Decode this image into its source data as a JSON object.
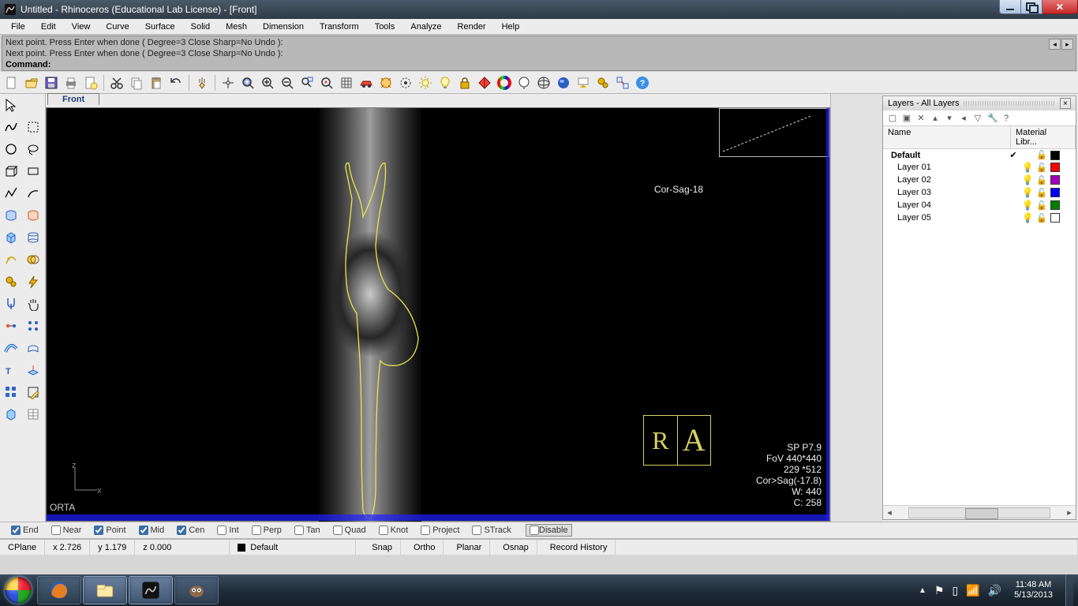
{
  "window": {
    "title": "Untitled - Rhinoceros (Educational Lab License) - [Front]"
  },
  "menu": [
    "File",
    "Edit",
    "View",
    "Curve",
    "Surface",
    "Solid",
    "Mesh",
    "Dimension",
    "Transform",
    "Tools",
    "Analyze",
    "Render",
    "Help"
  ],
  "command": {
    "history": [
      "Next point. Press Enter when done ( Degree=3  Close  Sharp=No  Undo ):",
      "Next point. Press Enter when done ( Degree=3  Close  Sharp=No  Undo ):"
    ],
    "prompt": "Command:",
    "value": ""
  },
  "viewport": {
    "title": "Front",
    "overlay": {
      "overlay_label": "Cor-Sag-18",
      "orta": "ORTA",
      "info_lines": "SP P7.9\nFoV 440*440\n229 *512\nCor>Sag(-17.8)\nW: 440\nC: 258",
      "ra_left": "R",
      "ra_right": "A",
      "axis_v": "z",
      "axis_h": "x"
    },
    "curve_color": "#e8e84a",
    "frame_color": "#2020ff"
  },
  "layers_panel": {
    "title": "Layers - All Layers",
    "columns": {
      "name": "Name",
      "material": "Material Libr..."
    },
    "rows": [
      {
        "name": "Default",
        "default": true,
        "checked": true,
        "on": true,
        "locked": false,
        "color": "#000000"
      },
      {
        "name": "Layer 01",
        "default": false,
        "checked": false,
        "on": true,
        "locked": false,
        "color": "#ff0000"
      },
      {
        "name": "Layer 02",
        "default": false,
        "checked": false,
        "on": true,
        "locked": false,
        "color": "#a000c0"
      },
      {
        "name": "Layer 03",
        "default": false,
        "checked": false,
        "on": true,
        "locked": false,
        "color": "#0000ff"
      },
      {
        "name": "Layer 04",
        "default": false,
        "checked": false,
        "on": true,
        "locked": false,
        "color": "#008000"
      },
      {
        "name": "Layer 05",
        "default": false,
        "checked": false,
        "on": true,
        "locked": false,
        "color": "#ffffff"
      }
    ]
  },
  "osnap": {
    "items": [
      {
        "label": "End",
        "checked": true
      },
      {
        "label": "Near",
        "checked": false
      },
      {
        "label": "Point",
        "checked": true
      },
      {
        "label": "Mid",
        "checked": true
      },
      {
        "label": "Cen",
        "checked": true
      },
      {
        "label": "Int",
        "checked": false
      },
      {
        "label": "Perp",
        "checked": false
      },
      {
        "label": "Tan",
        "checked": false
      },
      {
        "label": "Quad",
        "checked": false
      },
      {
        "label": "Knot",
        "checked": false
      },
      {
        "label": "Project",
        "checked": false
      },
      {
        "label": "STrack",
        "checked": false
      }
    ],
    "disable": "Disable"
  },
  "status": {
    "cplane": "CPlane",
    "x": "x 2.726",
    "y": "y 1.179",
    "z": "z 0.000",
    "layer": "Default",
    "toggles": [
      "Snap",
      "Ortho",
      "Planar",
      "Osnap",
      "Record History"
    ]
  },
  "main_toolbar_icons": [
    "new",
    "open",
    "save",
    "print",
    "doc-props",
    "cut",
    "copy",
    "paste",
    "undo",
    "pan",
    "snap",
    "zoom-extents",
    "zoom-in",
    "zoom-out",
    "zoom-window",
    "zoom-sel",
    "grid",
    "car",
    "render-sel",
    "sun",
    "spotlight",
    "bulb",
    "lock",
    "shade",
    "hue",
    "balloon",
    "wire",
    "sphere",
    "arrow-down",
    "gears",
    "join",
    "help"
  ],
  "toolbox_icons": [
    "pointer",
    "",
    "freecurve",
    "rect-sel",
    "circle",
    "lasso",
    "box",
    "rect",
    "polyline",
    "arc",
    "srf",
    "srf2",
    "solid",
    "loft",
    "crv-tools",
    "booleans",
    "gears",
    "flash",
    "fork",
    "hand",
    "dots-a",
    "dots-b",
    "pipe",
    "sweep",
    "text",
    "cplane",
    "array",
    "box-edit",
    "block",
    "props"
  ],
  "taskbar": {
    "time": "11:48 AM",
    "date": "5/13/2013"
  }
}
